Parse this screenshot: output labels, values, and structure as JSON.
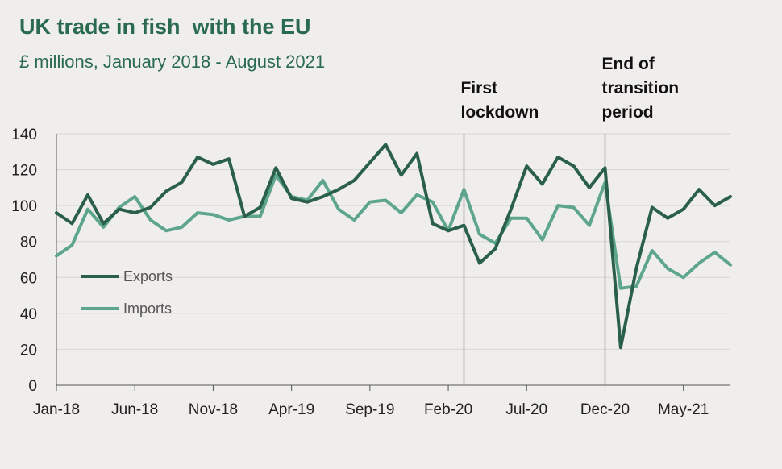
{
  "chart_data": {
    "type": "line",
    "title": "UK trade in fish  with the EU",
    "subtitle": "£ millions, January 2018 - August 2021",
    "xlabel": "",
    "ylabel": "",
    "ylim": [
      0,
      140
    ],
    "yticks": [
      0,
      20,
      40,
      60,
      80,
      100,
      120,
      140
    ],
    "grid": true,
    "legend_position": "left-middle",
    "x_tick_labels": [
      {
        "index": 0,
        "label": "Jan-18"
      },
      {
        "index": 5,
        "label": "Jun-18"
      },
      {
        "index": 10,
        "label": "Nov-18"
      },
      {
        "index": 15,
        "label": "Apr-19"
      },
      {
        "index": 20,
        "label": "Sep-19"
      },
      {
        "index": 25,
        "label": "Feb-20"
      },
      {
        "index": 30,
        "label": "Jul-20"
      },
      {
        "index": 35,
        "label": "Dec-20"
      },
      {
        "index": 40,
        "label": "May-21"
      }
    ],
    "num_points": 44,
    "series": [
      {
        "name": "Exports",
        "color": "#2a6049",
        "values": [
          96,
          90,
          106,
          90,
          98,
          96,
          99,
          108,
          113,
          127,
          123,
          126,
          94,
          99,
          121,
          104,
          102,
          105,
          109,
          114,
          124,
          134,
          117,
          129,
          90,
          86,
          89,
          68,
          76,
          98,
          122,
          112,
          127,
          122,
          110,
          121,
          21,
          65,
          99,
          93,
          98,
          109,
          100,
          105
        ]
      },
      {
        "name": "Imports",
        "color": "#5da58c",
        "values": [
          72,
          78,
          98,
          88,
          99,
          105,
          92,
          86,
          88,
          96,
          95,
          92,
          94,
          94,
          117,
          105,
          103,
          114,
          98,
          92,
          102,
          103,
          96,
          106,
          102,
          86,
          109,
          84,
          79,
          93,
          93,
          81,
          100,
          99,
          89,
          113,
          54,
          55,
          75,
          65,
          60,
          68,
          74,
          67
        ]
      }
    ],
    "annotations": [
      {
        "index": 26,
        "lines": [
          "First",
          "lockdown"
        ]
      },
      {
        "index": 35,
        "lines": [
          "End of",
          "transition",
          "period"
        ]
      }
    ]
  }
}
